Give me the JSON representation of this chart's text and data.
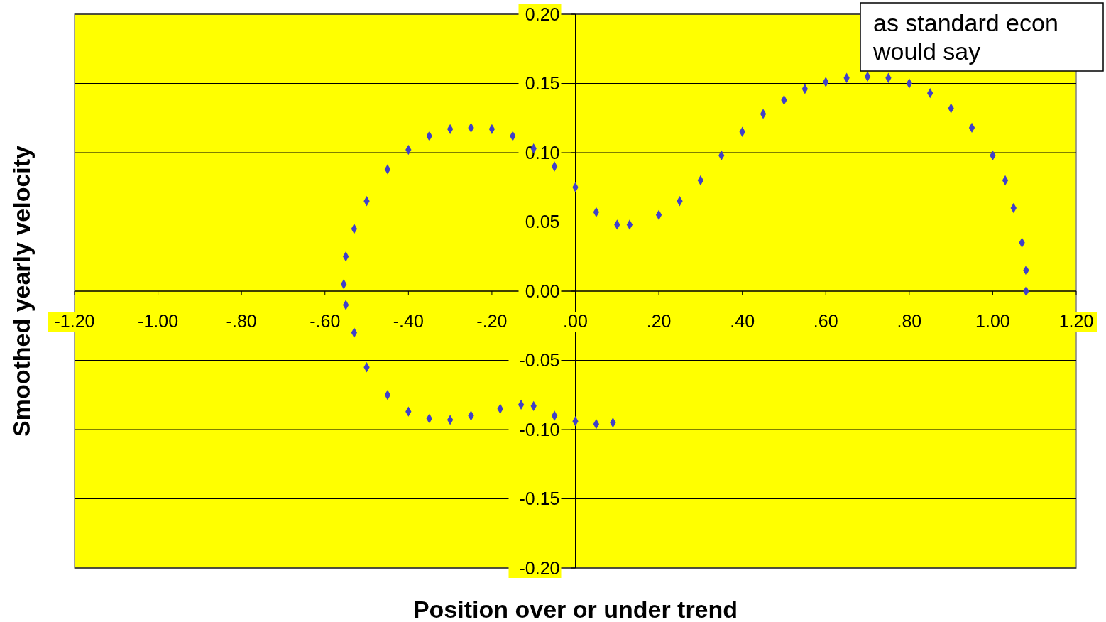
{
  "chart_data": {
    "type": "scatter",
    "xlabel": "Position over or under trend",
    "ylabel": "Smoothed yearly velocity",
    "annotations": [
      "as standard econ would say"
    ],
    "xlim": [
      -1.2,
      1.2
    ],
    "xticks": [
      {
        "value": -1.2,
        "label": "-1.20"
      },
      {
        "value": -1,
        "label": "-1.00"
      },
      {
        "value": -0.8,
        "label": "-.80"
      },
      {
        "value": -0.6,
        "label": "-.60"
      },
      {
        "value": -0.4,
        "label": "-.40"
      },
      {
        "value": -0.2,
        "label": "-.20"
      },
      {
        "value": 0,
        "label": ".00"
      },
      {
        "value": 0.2,
        "label": ".20"
      },
      {
        "value": 0.4,
        "label": ".40"
      },
      {
        "value": 0.6,
        "label": ".60"
      },
      {
        "value": 0.8,
        "label": ".80"
      },
      {
        "value": 1,
        "label": "1.00"
      },
      {
        "value": 1.2,
        "label": "1.20"
      }
    ],
    "ylim": [
      -0.2,
      0.2
    ],
    "yticks": [
      {
        "value": -0.2,
        "label": "-0.20"
      },
      {
        "value": -0.15,
        "label": "-0.15"
      },
      {
        "value": -0.1,
        "label": "-0.10"
      },
      {
        "value": -0.05,
        "label": "-0.05"
      },
      {
        "value": 0,
        "label": "0.00"
      },
      {
        "value": 0.05,
        "label": "0.05"
      },
      {
        "value": 0.1,
        "label": "0.10"
      },
      {
        "value": 0.15,
        "label": "0.15"
      },
      {
        "value": 0.2,
        "label": "0.20"
      }
    ],
    "grid": "y",
    "marker": "diamond",
    "series": [
      {
        "color": "#4040c8",
        "x": [
          0.09,
          0.05,
          0.0,
          -0.05,
          -0.1,
          -0.13,
          -0.18,
          -0.25,
          -0.3,
          -0.35,
          -0.4,
          -0.45,
          -0.5,
          -0.53,
          -0.55,
          -0.555,
          -0.55,
          -0.53,
          -0.5,
          -0.45,
          -0.4,
          -0.35,
          -0.3,
          -0.25,
          -0.2,
          -0.15,
          -0.1,
          -0.05,
          0.0,
          0.05,
          0.1,
          0.13,
          0.2,
          0.25,
          0.3,
          0.35,
          0.4,
          0.45,
          0.5,
          0.55,
          0.6,
          0.65,
          0.7,
          0.75,
          0.8,
          0.85,
          0.9,
          0.95,
          1.0,
          1.03,
          1.05,
          1.07,
          1.08,
          1.08
        ],
        "values": [
          -0.095,
          -0.096,
          -0.094,
          -0.09,
          -0.083,
          -0.082,
          -0.085,
          -0.09,
          -0.093,
          -0.092,
          -0.087,
          -0.075,
          -0.055,
          -0.03,
          -0.01,
          0.005,
          0.025,
          0.045,
          0.065,
          0.088,
          0.102,
          0.112,
          0.117,
          0.118,
          0.117,
          0.112,
          0.103,
          0.09,
          0.075,
          0.057,
          0.048,
          0.048,
          0.055,
          0.065,
          0.08,
          0.098,
          0.115,
          0.128,
          0.138,
          0.146,
          0.151,
          0.154,
          0.155,
          0.154,
          0.15,
          0.143,
          0.132,
          0.118,
          0.098,
          0.08,
          0.06,
          0.035,
          0.015,
          0.0
        ]
      }
    ]
  }
}
